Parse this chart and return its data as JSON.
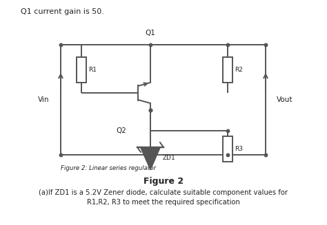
{
  "title_text": "Q1 current gain is 50.",
  "figure_label": "Figure 2",
  "figure_caption": "Figure 2: Linear series regulator",
  "bottom_text_line1": "(a)If ZD1 is a 5.2V Zener diode, calculate suitable component values for",
  "bottom_text_line2": "R1,R2, R3 to meet the required specification",
  "bg_color": "#ffffff",
  "line_color": "#555555",
  "text_color": "#222222"
}
